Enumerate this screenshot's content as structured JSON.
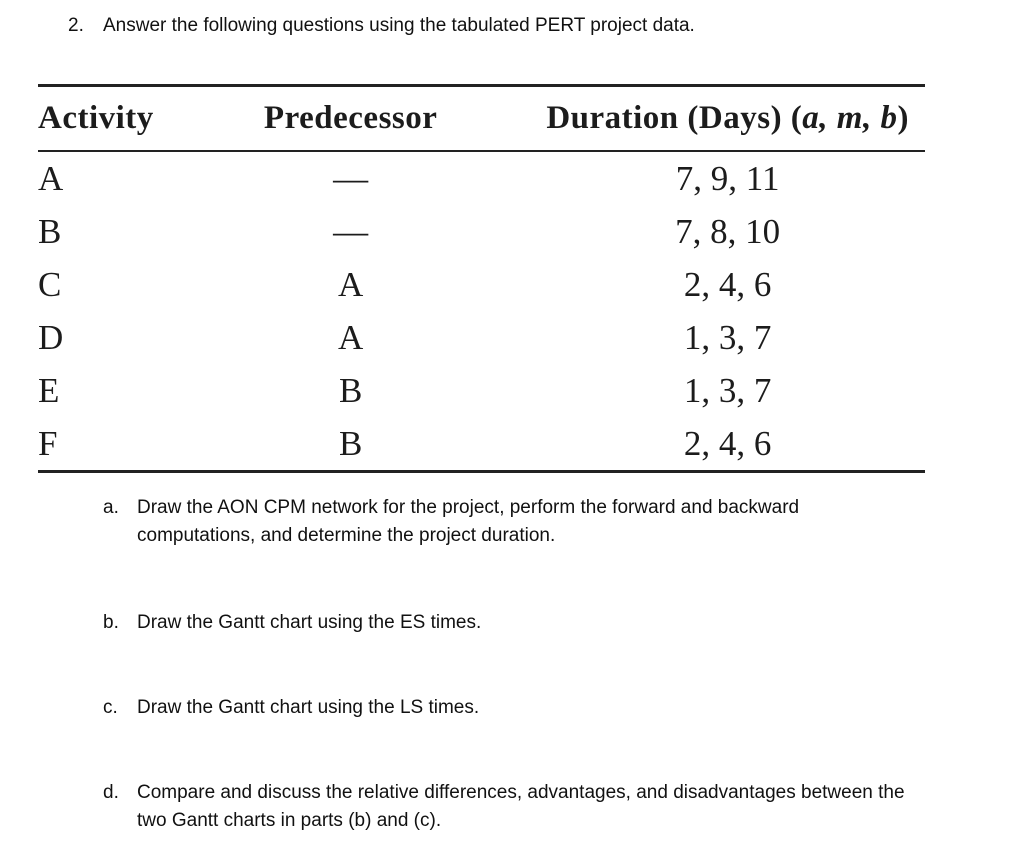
{
  "title": {
    "number": "2.",
    "text": "Answer the following questions using the tabulated PERT project data."
  },
  "table": {
    "headers": {
      "activity": "Activity",
      "predecessor": "Predecessor",
      "duration_prefix": "Duration (Days) (",
      "duration_params": "a, m, b",
      "duration_suffix": ")"
    },
    "rows": [
      {
        "activity": "A",
        "predecessor": "—",
        "duration": "7, 9, 11"
      },
      {
        "activity": "B",
        "predecessor": "—",
        "duration": "7, 8, 10"
      },
      {
        "activity": "C",
        "predecessor": "A",
        "duration": "2, 4, 6"
      },
      {
        "activity": "D",
        "predecessor": "A",
        "duration": "1, 3, 7"
      },
      {
        "activity": "E",
        "predecessor": "B",
        "duration": "1, 3, 7"
      },
      {
        "activity": "F",
        "predecessor": "B",
        "duration": "2, 4, 6"
      }
    ]
  },
  "questions": [
    {
      "label": "a.",
      "lines": [
        "Draw the AON CPM network for the project, perform the forward and backward",
        "computations, and determine the project duration."
      ]
    },
    {
      "label": "b.",
      "lines": [
        "Draw the Gantt chart using the ES times."
      ]
    },
    {
      "label": "c.",
      "lines": [
        "Draw the Gantt chart using the LS times."
      ]
    },
    {
      "label": "d.",
      "lines": [
        "Compare and discuss the relative differences, advantages, and disadvantages between the",
        "two Gantt charts in parts (b) and (c)."
      ]
    }
  ],
  "colors": {
    "text": "#111111",
    "table_text": "#1c1c1c",
    "rule": "#222222",
    "background": "#ffffff"
  }
}
